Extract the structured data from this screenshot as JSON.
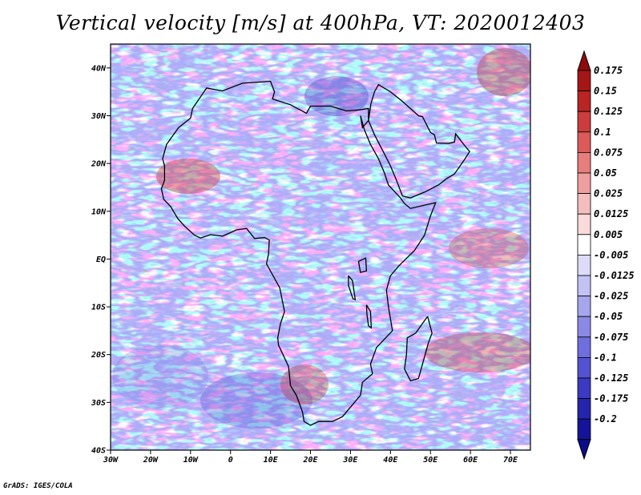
{
  "title": "Vertical velocity [m/s] at 400hPa, VT: 2020012403",
  "footer": "GrADS: IGES/COLA",
  "map": {
    "lon_range": [
      -30,
      75
    ],
    "lat_range": [
      -40,
      45
    ],
    "lat_ticks": [
      {
        "value": 40,
        "label": "40N"
      },
      {
        "value": 30,
        "label": "30N"
      },
      {
        "value": 20,
        "label": "20N"
      },
      {
        "value": 10,
        "label": "10N"
      },
      {
        "value": 0,
        "label": "EQ"
      },
      {
        "value": -10,
        "label": "10S"
      },
      {
        "value": -20,
        "label": "20S"
      },
      {
        "value": -30,
        "label": "30S"
      },
      {
        "value": -40,
        "label": "40S"
      }
    ],
    "lon_ticks": [
      {
        "value": -30,
        "label": "30W"
      },
      {
        "value": -20,
        "label": "20W"
      },
      {
        "value": -10,
        "label": "10W"
      },
      {
        "value": 0,
        "label": "0"
      },
      {
        "value": 10,
        "label": "10E"
      },
      {
        "value": 20,
        "label": "20E"
      },
      {
        "value": 30,
        "label": "30E"
      },
      {
        "value": 40,
        "label": "40E"
      },
      {
        "value": 50,
        "label": "50E"
      },
      {
        "value": 60,
        "label": "60E"
      },
      {
        "value": 70,
        "label": "70E"
      }
    ]
  },
  "colorbar": {
    "entries": [
      {
        "label": "0.175",
        "color": "#a51616"
      },
      {
        "label": "0.15",
        "color": "#b92424"
      },
      {
        "label": "0.125",
        "color": "#cc3c3c"
      },
      {
        "label": "0.1",
        "color": "#dc5a5a"
      },
      {
        "label": "0.075",
        "color": "#e77d7d"
      },
      {
        "label": "0.05",
        "color": "#ef9f9f"
      },
      {
        "label": "0.025",
        "color": "#f5bebe"
      },
      {
        "label": "0.0125",
        "color": "#fadada"
      },
      {
        "label": "0.005",
        "color": "#ffffff"
      },
      {
        "label": "-0.005",
        "color": "#dcdcfa"
      },
      {
        "label": "-0.0125",
        "color": "#c2c2f4"
      },
      {
        "label": "-0.025",
        "color": "#a6a6ee"
      },
      {
        "label": "-0.05",
        "color": "#8a8ae6"
      },
      {
        "label": "-0.075",
        "color": "#6e6ede"
      },
      {
        "label": "-0.1",
        "color": "#5252d2"
      },
      {
        "label": "-0.125",
        "color": "#3a3ac2"
      },
      {
        "label": "-0.175",
        "color": "#2424ac"
      },
      {
        "label": "-0.2",
        "color": "#14149a"
      }
    ],
    "top_color": "#8e0c0c",
    "bottom_color": "#0c0c8a"
  },
  "coastline": [
    [
      -17,
      21
    ],
    [
      -16,
      24
    ],
    [
      -13,
      27.5
    ],
    [
      -10,
      29.5
    ],
    [
      -9.5,
      31.5
    ],
    [
      -6,
      35.8
    ],
    [
      -2,
      35.2
    ],
    [
      3,
      36.8
    ],
    [
      10,
      37.2
    ],
    [
      11,
      35
    ],
    [
      10.5,
      33.5
    ],
    [
      15,
      32.3
    ],
    [
      19,
      30.5
    ],
    [
      20,
      32
    ],
    [
      25,
      32
    ],
    [
      29,
      31
    ],
    [
      32,
      31.2
    ],
    [
      34.5,
      31.5
    ],
    [
      34.5,
      29
    ],
    [
      33,
      27.5
    ],
    [
      32.5,
      30
    ],
    [
      33.5,
      27
    ],
    [
      35,
      24
    ],
    [
      37,
      21
    ],
    [
      38.5,
      18
    ],
    [
      39.5,
      15.5
    ],
    [
      42.5,
      12.8
    ],
    [
      43.5,
      11.6
    ],
    [
      45,
      10.6
    ],
    [
      51.3,
      11.8
    ],
    [
      50,
      9
    ],
    [
      48.5,
      5
    ],
    [
      46,
      1.8
    ],
    [
      42,
      -1.5
    ],
    [
      40,
      -3.5
    ],
    [
      39,
      -6.5
    ],
    [
      39.5,
      -10
    ],
    [
      40.5,
      -15
    ],
    [
      36.5,
      -18.5
    ],
    [
      35,
      -22
    ],
    [
      35.5,
      -24
    ],
    [
      33,
      -25.8
    ],
    [
      32.5,
      -28.5
    ],
    [
      31,
      -30
    ],
    [
      28,
      -33
    ],
    [
      25.5,
      -34
    ],
    [
      22,
      -34
    ],
    [
      20,
      -34.8
    ],
    [
      18.4,
      -34
    ],
    [
      18,
      -32
    ],
    [
      16.5,
      -28.6
    ],
    [
      15,
      -26.5
    ],
    [
      14.5,
      -22.5
    ],
    [
      12,
      -18
    ],
    [
      11.8,
      -16.5
    ],
    [
      12.5,
      -13.5
    ],
    [
      13.5,
      -11
    ],
    [
      12.3,
      -6
    ],
    [
      9,
      -1
    ],
    [
      9.5,
      1
    ],
    [
      9.7,
      4
    ],
    [
      8.5,
      4.5
    ],
    [
      6,
      4.3
    ],
    [
      4,
      6.4
    ],
    [
      1.5,
      6.1
    ],
    [
      -2,
      4.8
    ],
    [
      -5,
      5.1
    ],
    [
      -7.5,
      4.4
    ],
    [
      -9,
      5
    ],
    [
      -11.5,
      6.9
    ],
    [
      -13.2,
      8.5
    ],
    [
      -15,
      11
    ],
    [
      -16.7,
      12.5
    ],
    [
      -17.3,
      14.7
    ],
    [
      -16.5,
      16.5
    ],
    [
      -16.5,
      19.5
    ],
    [
      -17,
      21
    ]
  ],
  "madagascar": [
    [
      49.3,
      -12
    ],
    [
      50.4,
      -15.5
    ],
    [
      49.5,
      -17.5
    ],
    [
      48,
      -22
    ],
    [
      47,
      -25
    ],
    [
      45,
      -25.5
    ],
    [
      43.5,
      -23
    ],
    [
      44,
      -20
    ],
    [
      44.2,
      -16.5
    ],
    [
      46.3,
      -15.5
    ],
    [
      48,
      -13.5
    ],
    [
      49.3,
      -12
    ]
  ],
  "arabia": [
    [
      34.5,
      29
    ],
    [
      36,
      26
    ],
    [
      38.5,
      22
    ],
    [
      40,
      19.5
    ],
    [
      41.5,
      16.5
    ],
    [
      43,
      13.2
    ],
    [
      45,
      12.8
    ],
    [
      48.5,
      14
    ],
    [
      52,
      15.5
    ],
    [
      54,
      16.8
    ],
    [
      56,
      17.8
    ],
    [
      58.5,
      20.8
    ],
    [
      59.8,
      22.5
    ],
    [
      58.5,
      23.8
    ],
    [
      56.3,
      26.2
    ],
    [
      56,
      24.5
    ],
    [
      54.5,
      24.2
    ],
    [
      51.5,
      24.3
    ],
    [
      51,
      26
    ],
    [
      50,
      26.5
    ],
    [
      48,
      29.8
    ],
    [
      47,
      30
    ],
    [
      43,
      33
    ],
    [
      40,
      35
    ],
    [
      37,
      36.5
    ],
    [
      36,
      35
    ],
    [
      35.1,
      32.5
    ],
    [
      34.5,
      29
    ]
  ],
  "lakes": [
    [
      [
        32,
        -0.5
      ],
      [
        33.8,
        0.2
      ],
      [
        34,
        -2.5
      ],
      [
        32.5,
        -2.8
      ],
      [
        32,
        -0.5
      ]
    ],
    [
      [
        29.5,
        -3.5
      ],
      [
        30.5,
        -4.5
      ],
      [
        31.2,
        -8.5
      ],
      [
        30.6,
        -8.3
      ],
      [
        29.5,
        -5.5
      ],
      [
        29.5,
        -3.5
      ]
    ],
    [
      [
        34,
        -9.6
      ],
      [
        35,
        -11
      ],
      [
        35.2,
        -14.4
      ],
      [
        34.5,
        -14
      ],
      [
        34.1,
        -11.5
      ],
      [
        34,
        -9.6
      ]
    ]
  ]
}
